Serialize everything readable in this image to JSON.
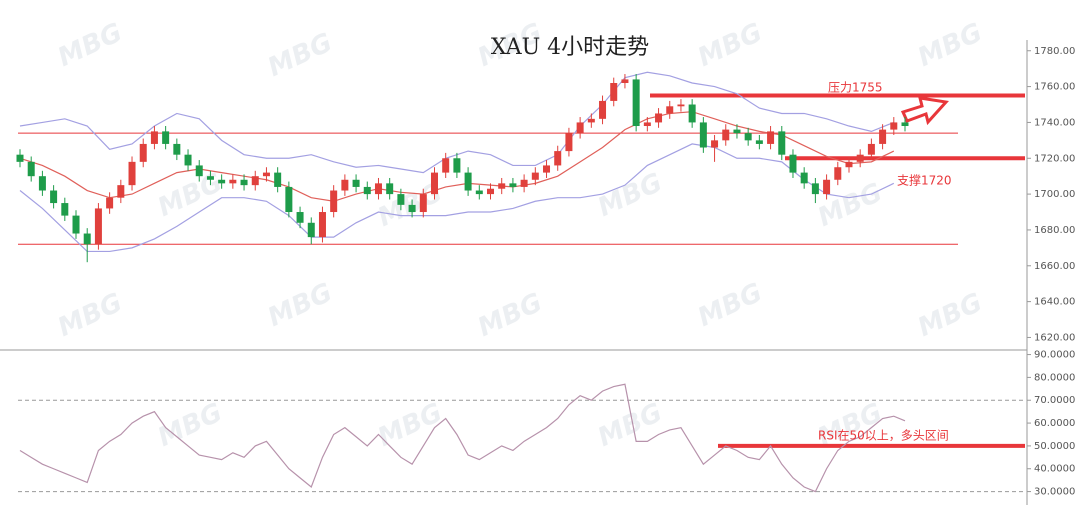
{
  "chart_data": [
    {
      "type": "candlestick",
      "title": "XAU 4小时走势",
      "watermark": "MBG",
      "up_color": "#e0403c",
      "down_color": "#1e9c4a",
      "open": [
        1722,
        1718,
        1710,
        1702,
        1695,
        1688,
        1678,
        1672,
        1692,
        1698,
        1705,
        1718,
        1728,
        1735,
        1728,
        1722,
        1716,
        1710,
        1708,
        1706,
        1708,
        1705,
        1710,
        1712,
        1704,
        1690,
        1684,
        1676,
        1690,
        1702,
        1708,
        1704,
        1700,
        1706,
        1700,
        1694,
        1690,
        1700,
        1712,
        1720,
        1712,
        1702,
        1700,
        1703,
        1706,
        1704,
        1708,
        1712,
        1716,
        1724,
        1734,
        1740,
        1742,
        1752,
        1762,
        1764,
        1738,
        1740,
        1745,
        1749,
        1750,
        1740,
        1726,
        1730,
        1736,
        1734,
        1730,
        1728,
        1735,
        1722,
        1712,
        1706,
        1700,
        1708,
        1715,
        1718,
        1722,
        1728,
        1736,
        1740
      ],
      "high": [
        1725,
        1721,
        1713,
        1705,
        1698,
        1691,
        1681,
        1695,
        1701,
        1708,
        1721,
        1731,
        1738,
        1738,
        1731,
        1725,
        1719,
        1713,
        1711,
        1711,
        1711,
        1713,
        1715,
        1715,
        1707,
        1693,
        1687,
        1693,
        1705,
        1711,
        1711,
        1707,
        1709,
        1709,
        1703,
        1697,
        1703,
        1715,
        1723,
        1723,
        1715,
        1705,
        1706,
        1709,
        1709,
        1711,
        1715,
        1719,
        1727,
        1737,
        1743,
        1745,
        1755,
        1765,
        1767,
        1767,
        1743,
        1748,
        1752,
        1753,
        1753,
        1743,
        1733,
        1739,
        1739,
        1737,
        1733,
        1738,
        1738,
        1725,
        1715,
        1709,
        1711,
        1718,
        1721,
        1725,
        1731,
        1739,
        1743,
        1743
      ],
      "low": [
        1715,
        1707,
        1699,
        1692,
        1685,
        1675,
        1662,
        1669,
        1689,
        1695,
        1702,
        1715,
        1725,
        1725,
        1719,
        1713,
        1707,
        1705,
        1703,
        1703,
        1702,
        1702,
        1707,
        1701,
        1687,
        1681,
        1672,
        1673,
        1687,
        1699,
        1701,
        1697,
        1697,
        1697,
        1691,
        1687,
        1687,
        1697,
        1709,
        1709,
        1699,
        1697,
        1697,
        1700,
        1701,
        1701,
        1705,
        1709,
        1713,
        1721,
        1731,
        1737,
        1739,
        1749,
        1759,
        1735,
        1735,
        1737,
        1742,
        1746,
        1737,
        1723,
        1718,
        1727,
        1731,
        1727,
        1725,
        1725,
        1719,
        1709,
        1703,
        1695,
        1697,
        1705,
        1712,
        1715,
        1719,
        1725,
        1733,
        1735
      ],
      "close": [
        1718,
        1710,
        1702,
        1695,
        1688,
        1678,
        1672,
        1692,
        1698,
        1705,
        1718,
        1728,
        1735,
        1728,
        1722,
        1716,
        1710,
        1708,
        1706,
        1708,
        1705,
        1710,
        1712,
        1704,
        1690,
        1684,
        1676,
        1690,
        1702,
        1708,
        1704,
        1700,
        1706,
        1700,
        1694,
        1690,
        1700,
        1712,
        1720,
        1712,
        1702,
        1700,
        1703,
        1706,
        1704,
        1708,
        1712,
        1716,
        1724,
        1734,
        1740,
        1742,
        1752,
        1762,
        1764,
        1738,
        1740,
        1745,
        1749,
        1750,
        1740,
        1726,
        1730,
        1736,
        1734,
        1730,
        1728,
        1735,
        1722,
        1712,
        1706,
        1700,
        1708,
        1715,
        1718,
        1722,
        1728,
        1736,
        1740,
        1738
      ],
      "bands": [
        {
          "color": "#a3a0e2",
          "values": [
            1738,
            1740,
            1742,
            1738,
            1725,
            1728,
            1738,
            1745,
            1742,
            1730,
            1722,
            1720,
            1720,
            1722,
            1718,
            1715,
            1716,
            1714,
            1712,
            1720,
            1724,
            1722,
            1716,
            1716,
            1722,
            1738,
            1750,
            1765,
            1768,
            1766,
            1762,
            1760,
            1756,
            1748,
            1745,
            1745,
            1742,
            1738,
            1735,
            1740
          ]
        },
        {
          "color": "#e0605a",
          "values": [
            1720,
            1716,
            1710,
            1702,
            1698,
            1700,
            1706,
            1712,
            1714,
            1712,
            1710,
            1708,
            1704,
            1698,
            1696,
            1700,
            1703,
            1701,
            1700,
            1704,
            1706,
            1705,
            1704,
            1706,
            1710,
            1718,
            1726,
            1736,
            1742,
            1745,
            1746,
            1742,
            1738,
            1735,
            1733,
            1727,
            1721,
            1717,
            1718,
            1724
          ]
        },
        {
          "color": "#a3a0e2",
          "values": [
            1702,
            1692,
            1680,
            1668,
            1668,
            1670,
            1675,
            1682,
            1690,
            1698,
            1698,
            1696,
            1688,
            1676,
            1676,
            1684,
            1690,
            1688,
            1688,
            1688,
            1690,
            1690,
            1692,
            1696,
            1698,
            1698,
            1700,
            1705,
            1716,
            1722,
            1728,
            1726,
            1720,
            1720,
            1718,
            1708,
            1700,
            1698,
            1700,
            1706
          ]
        }
      ],
      "levels": [
        {
          "value": 1755,
          "color": "#e8363a",
          "style": "bold"
        },
        {
          "value": 1720,
          "color": "#e8363a",
          "style": "bold"
        },
        {
          "value": 1734,
          "color": "#e8363a",
          "style": "thin"
        },
        {
          "value": 1672,
          "color": "#e8363a",
          "style": "thin"
        }
      ],
      "annotations": [
        "压力1755",
        "支撑1720"
      ],
      "ylim": [
        1613,
        1786
      ],
      "yticks": [
        {
          "value": 1780,
          "label": "1780.00"
        },
        {
          "value": 1760,
          "label": "1760.00"
        },
        {
          "value": 1740,
          "label": "1740.00"
        },
        {
          "value": 1720,
          "label": "1720.00"
        },
        {
          "value": 1700,
          "label": "1700.00"
        },
        {
          "value": 1680,
          "label": "1680.00"
        },
        {
          "value": 1660,
          "label": "1660.00"
        },
        {
          "value": 1640,
          "label": "1640.00"
        },
        {
          "value": 1620,
          "label": "1620.00"
        }
      ]
    },
    {
      "type": "line",
      "color": "#b792ab",
      "values": [
        48,
        45,
        42,
        40,
        38,
        36,
        34,
        48,
        52,
        55,
        60,
        63,
        65,
        58,
        54,
        50,
        46,
        45,
        44,
        47,
        45,
        50,
        52,
        46,
        40,
        36,
        32,
        45,
        55,
        58,
        54,
        50,
        55,
        50,
        45,
        42,
        50,
        58,
        62,
        55,
        46,
        44,
        47,
        50,
        48,
        52,
        55,
        58,
        62,
        68,
        72,
        70,
        74,
        76,
        77,
        52,
        52,
        55,
        57,
        58,
        50,
        42,
        46,
        50,
        48,
        45,
        44,
        50,
        42,
        36,
        32,
        30,
        40,
        48,
        52,
        54,
        58,
        62,
        63,
        61
      ],
      "levels": [
        {
          "value": 70,
          "color": "#999999",
          "style": "dashed"
        },
        {
          "value": 30,
          "color": "#999999",
          "style": "dashed"
        },
        {
          "value": 50,
          "color": "#e8363a",
          "style": "bold"
        }
      ],
      "annotations": [
        "RSI在50以上，多头区间"
      ],
      "ylim": [
        25,
        92
      ],
      "yticks": [
        {
          "value": 90,
          "label": "90.0000"
        },
        {
          "value": 80,
          "label": "80.0000"
        },
        {
          "value": 70,
          "label": "70.0000"
        },
        {
          "value": 60,
          "label": "60.0000"
        },
        {
          "value": 50,
          "label": "50.0000"
        },
        {
          "value": 40,
          "label": "40.0000"
        },
        {
          "value": 30,
          "label": "30.0000"
        }
      ]
    }
  ]
}
